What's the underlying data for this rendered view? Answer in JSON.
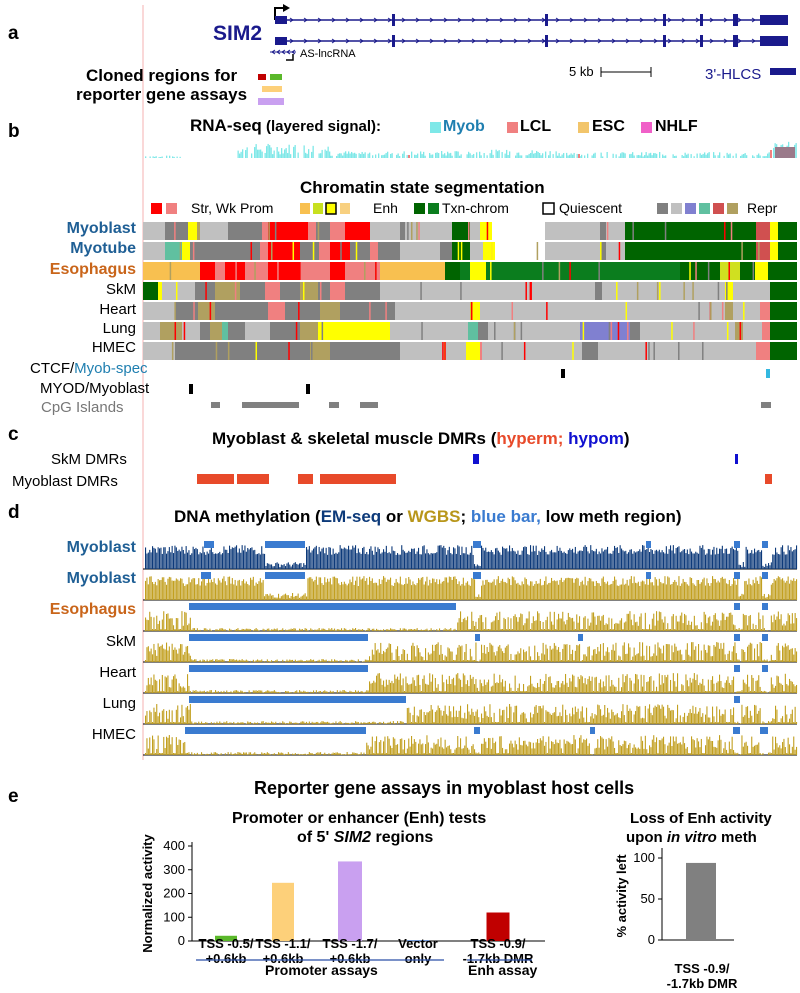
{
  "colors": {
    "gene_blue": "#1a1a8c",
    "myob_cyan": "#7ee8e8",
    "lcl_salmon": "#f08080",
    "esc_tan": "#f2c56b",
    "nhlf_pink": "#f060c8",
    "strong_prom": "#ff0000",
    "weak_prom": "#f08080",
    "enh_orange": "#f8c050",
    "enh_yellow": "#ffff00",
    "txn_dark": "#006400",
    "txn_green": "#0b7d1e",
    "quiescent": "#c8c8c8",
    "repr_gray": "#808080",
    "dmr_red": "#e84a2a",
    "dmr_blue": "#1010d0",
    "emseq_navy": "#0d3a7a",
    "wgbs_gold": "#c2a020",
    "lowmeth_blue": "#3a7bd0"
  },
  "panel_a": {
    "letter": "a",
    "gene_name": "SIM2",
    "as_lncrna": "AS-lncRNA",
    "cloned_title_1": "Cloned regions for",
    "cloned_title_2": "reporter gene assays",
    "scale_label": "5 kb",
    "hlcs_label": "3'-HLCS"
  },
  "panel_b": {
    "letter": "b",
    "rnaseq_title_bold": "RNA-seq",
    "rnaseq_title_rest": " (layered signal):",
    "rnaseq_legend": [
      {
        "label": "Myob",
        "color": "#7ee8e8",
        "text_color": "#1f7fb0"
      },
      {
        "label": "LCL",
        "color": "#f08080",
        "text_color": "#000"
      },
      {
        "label": "ESC",
        "color": "#f2c56b",
        "text_color": "#000"
      },
      {
        "label": "NHLF",
        "color": "#f060c8",
        "text_color": "#000"
      }
    ],
    "chromatin_title": "Chromatin state segmentation",
    "legend_prom": "Str, Wk Prom",
    "legend_enh": "Enh",
    "legend_txn": "Txn-chrom",
    "legend_quies": "Quiescent",
    "legend_repr": "Repr",
    "tracks": [
      "Myoblast",
      "Myotube",
      "Esophagus",
      "SkM",
      "Heart",
      "Lung",
      "HMEC"
    ],
    "ctcf_label_a": "CTCF/",
    "ctcf_label_b": "Myob-spec",
    "myod_label": "MYOD/Myoblast",
    "cpg_label": "CpG Islands"
  },
  "panel_c": {
    "letter": "c",
    "title_main": "Myoblast & skeletal muscle DMRs (",
    "title_hyper": "hyperm;",
    "title_hypo": " hypom",
    "title_close": ")",
    "skm_label": "SkM DMRs",
    "myob_label": "Myoblast DMRs"
  },
  "panel_d": {
    "letter": "d",
    "title_1": "DNA methylation (",
    "title_emseq": "EM-seq",
    "title_or": " or ",
    "title_wgbs": "WGBS",
    "title_semi": "; ",
    "title_bluebar": "blue bar,",
    "title_rest": " low meth region)",
    "tracks": [
      "Myoblast",
      "Myoblast",
      "Esophagus",
      "SkM",
      "Heart",
      "Lung",
      "HMEC"
    ]
  },
  "panel_e": {
    "letter": "e",
    "title": "Reporter gene assays in myoblast host cells",
    "sub_title_1": "Promoter or enhancer (Enh) tests",
    "sub_title_2a": "of 5' ",
    "sub_title_2b": "SIM2",
    "sub_title_2c": " regions",
    "ylabel": "Normalized activity",
    "right_title_1": "Loss of Enh activity",
    "right_title_2a": "upon ",
    "right_title_2b": "in vitro",
    "right_title_2c": " meth",
    "right_ylabel": "% activity left",
    "promoter_assays_label": "Promoter assays",
    "enh_assay_label": "Enh assay"
  },
  "chart_data": [
    {
      "type": "bar",
      "title": "Promoter or enhancer (Enh) tests of 5' SIM2 regions",
      "xlabel": "",
      "ylabel": "Normalized activity",
      "ylim": [
        0,
        400
      ],
      "yticks": [
        "0",
        "100",
        "200",
        "300",
        "400"
      ],
      "categories": [
        "TSS -0.5/ +0.6 kb",
        "TSS -1.1/ +0.6 kb",
        "TSS -1.7/ +0.6 kb",
        "Vector only",
        "TSS -0.9/ -1.7 kb DMR"
      ],
      "values": [
        22,
        245,
        335,
        3,
        120
      ],
      "bar_colors": [
        "#5ab82a",
        "#fdd07a",
        "#c9a0f0",
        "#3a70c8",
        "#c00000"
      ]
    },
    {
      "type": "bar",
      "title": "Loss of Enh activity upon in vitro meth",
      "xlabel": "",
      "ylabel": "% activity left",
      "ylim": [
        0,
        100
      ],
      "yticks": [
        "0",
        "50",
        "100"
      ],
      "categories": [
        "TSS -0.9/ -1.7 kb DMR"
      ],
      "values": [
        94
      ],
      "bar_colors": [
        "#808080"
      ]
    }
  ]
}
